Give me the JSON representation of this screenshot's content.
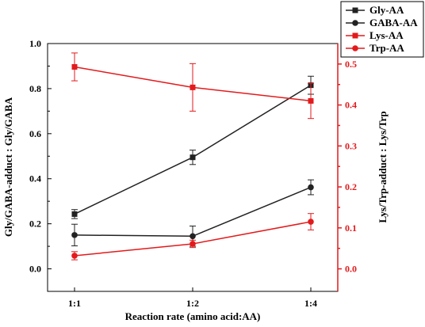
{
  "chart_data": {
    "type": "line",
    "categories": [
      "1:1",
      "1:2",
      "1:4"
    ],
    "xlabel": "Reaction rate (amino acid:AA)",
    "ylabel_left": "Gly/GABA-adduct : Gly/GABA",
    "ylabel_right": "Lys/Trp-adduct : Lys/Trp",
    "ylim_left": [
      -0.1,
      1.0
    ],
    "ylim_right": [
      -0.055,
      0.55
    ],
    "yticks_left": [
      "0.0",
      "0.2",
      "0.4",
      "0.6",
      "0.8",
      "1.0"
    ],
    "yticks_right": [
      "0.0",
      "0.1",
      "0.2",
      "0.3",
      "0.4",
      "0.5"
    ],
    "legend_position": "top-right, outside plot",
    "colors": {
      "left_axis": "#000000",
      "right_axis": "#e31a1c",
      "gly": "#222222",
      "gaba": "#222222",
      "lys": "#e31a1c",
      "trp": "#e31a1c"
    },
    "series": [
      {
        "name": "Gly-AA",
        "axis": "left",
        "marker": "square",
        "values": [
          0.243,
          0.495,
          0.815
        ],
        "errors": [
          0.02,
          0.032,
          0.04
        ]
      },
      {
        "name": "GABA-AA",
        "axis": "left",
        "marker": "circle",
        "values": [
          0.15,
          0.145,
          0.362
        ],
        "errors": [
          0.048,
          0.045,
          0.033
        ]
      },
      {
        "name": "Lys-AA",
        "axis": "right",
        "marker": "square",
        "values": [
          0.493,
          0.443,
          0.41
        ],
        "errors": [
          0.034,
          0.058,
          0.043
        ]
      },
      {
        "name": "Trp-AA",
        "axis": "right",
        "marker": "circle",
        "values": [
          0.032,
          0.061,
          0.115
        ],
        "errors": [
          0.01,
          0.009,
          0.02
        ]
      }
    ]
  }
}
